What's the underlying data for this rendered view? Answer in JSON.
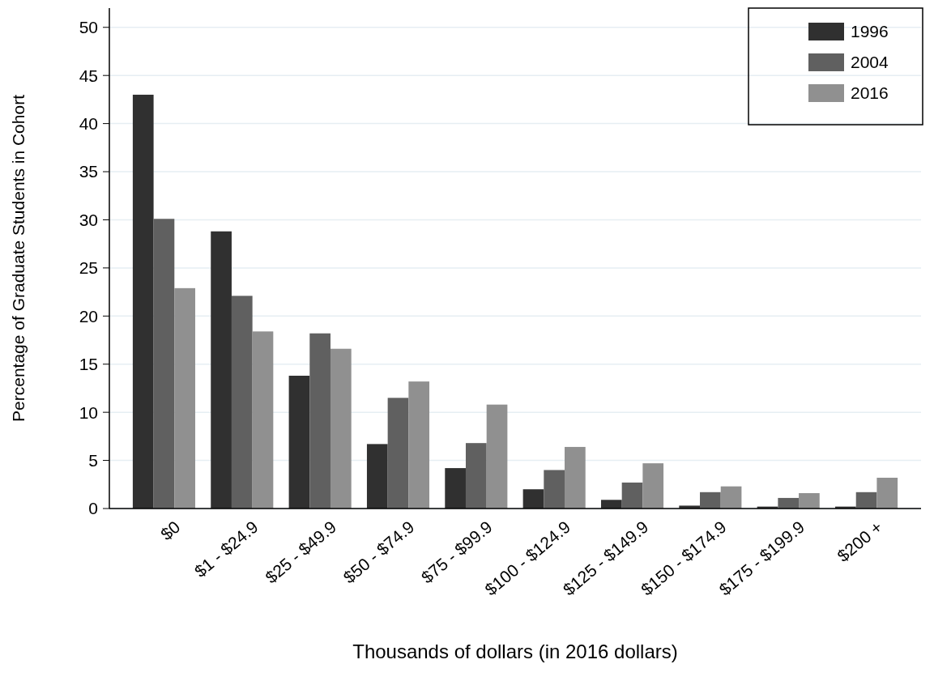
{
  "chart_data": {
    "type": "bar",
    "xlabel": "Thousands of dollars (in 2016 dollars)",
    "ylabel": "Percentage of Graduate Students in Cohort",
    "categories": [
      "$0",
      "$1 - $24.9",
      "$25 - $49.9",
      "$50 - $74.9",
      "$75 - $99.9",
      "$100 - $124.9",
      "$125 - $149.9",
      "$150 - $174.9",
      "$175 - $199.9",
      "$200 +"
    ],
    "series": [
      {
        "name": "1996",
        "color": "#303030",
        "values": [
          43.0,
          28.8,
          13.8,
          6.7,
          4.2,
          2.0,
          0.9,
          0.3,
          0.2,
          0.2
        ]
      },
      {
        "name": "2004",
        "color": "#606060",
        "values": [
          30.1,
          22.1,
          18.2,
          11.5,
          6.8,
          4.0,
          2.7,
          1.7,
          1.1,
          1.7
        ]
      },
      {
        "name": "2016",
        "color": "#909090",
        "values": [
          22.9,
          18.4,
          16.6,
          13.2,
          10.8,
          6.4,
          4.7,
          2.3,
          1.6,
          3.2
        ]
      }
    ],
    "ylim": [
      0,
      52
    ],
    "yticks": [
      0,
      5,
      10,
      15,
      20,
      25,
      30,
      35,
      40,
      45,
      50
    ],
    "grid": "y",
    "legend": "top right"
  }
}
